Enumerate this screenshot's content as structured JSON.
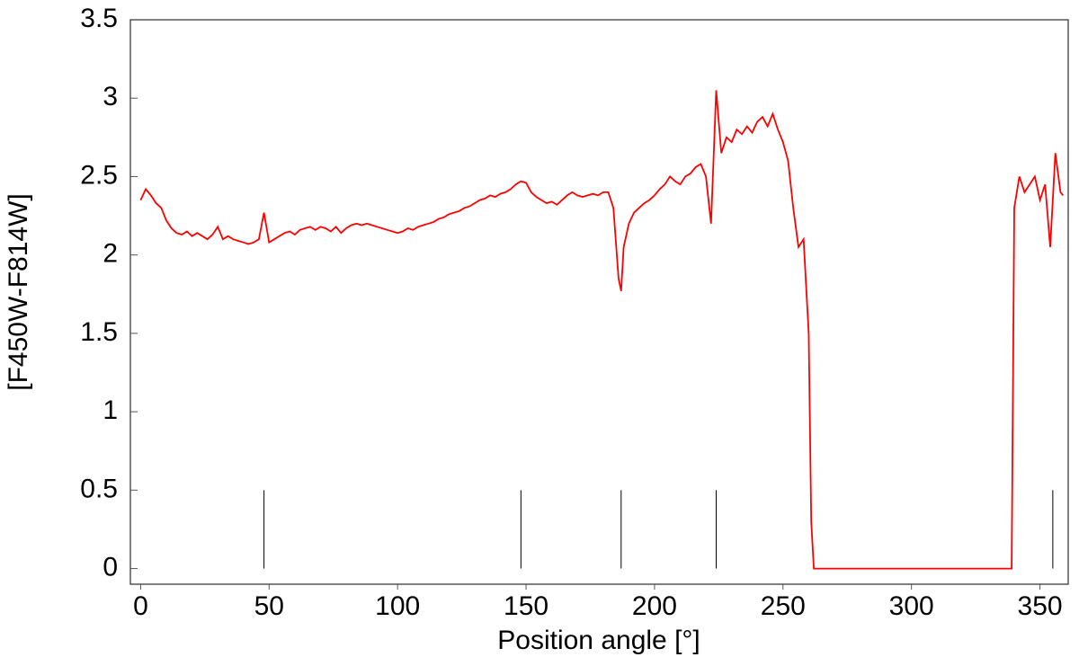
{
  "chart_data": {
    "type": "line",
    "xlabel": "Position angle [°]",
    "ylabel": "[F450W-F814W]",
    "xlim": [
      -4,
      361
    ],
    "ylim": [
      -0.1,
      3.5
    ],
    "xticks": [
      0,
      50,
      100,
      150,
      200,
      250,
      300,
      350
    ],
    "yticks": [
      0,
      0.5,
      1,
      1.5,
      2,
      2.5,
      3,
      3.5
    ],
    "vlines": {
      "x": [
        48,
        148,
        187,
        224,
        355
      ],
      "height": 0.5,
      "color": "#000000"
    },
    "series": [
      {
        "color": "#ff0000",
        "x": [
          0,
          2,
          4,
          6,
          8,
          10,
          12,
          14,
          16,
          18,
          20,
          22,
          24,
          26,
          28,
          30,
          32,
          34,
          36,
          38,
          40,
          42,
          44,
          46,
          48,
          50,
          52,
          54,
          56,
          58,
          60,
          62,
          64,
          66,
          68,
          70,
          72,
          74,
          76,
          78,
          80,
          82,
          84,
          86,
          88,
          90,
          92,
          94,
          96,
          98,
          100,
          102,
          104,
          106,
          108,
          110,
          112,
          114,
          116,
          118,
          120,
          122,
          124,
          126,
          128,
          130,
          132,
          134,
          136,
          138,
          140,
          142,
          144,
          146,
          148,
          150,
          152,
          154,
          156,
          158,
          160,
          162,
          164,
          166,
          168,
          170,
          172,
          174,
          176,
          178,
          180,
          182,
          184,
          186,
          187,
          188,
          190,
          192,
          194,
          196,
          198,
          200,
          202,
          204,
          206,
          208,
          210,
          212,
          214,
          216,
          218,
          220,
          222,
          224,
          226,
          228,
          230,
          232,
          234,
          236,
          238,
          240,
          242,
          244,
          246,
          248,
          250,
          252,
          254,
          256,
          258,
          260,
          261,
          262,
          300,
          339,
          340,
          342,
          344,
          346,
          348,
          350,
          352,
          354,
          356,
          358,
          359
        ],
        "values": [
          2.35,
          2.42,
          2.38,
          2.33,
          2.3,
          2.22,
          2.17,
          2.14,
          2.13,
          2.15,
          2.12,
          2.14,
          2.12,
          2.1,
          2.13,
          2.18,
          2.1,
          2.12,
          2.1,
          2.09,
          2.08,
          2.07,
          2.08,
          2.1,
          2.27,
          2.08,
          2.1,
          2.12,
          2.14,
          2.15,
          2.13,
          2.16,
          2.17,
          2.18,
          2.16,
          2.18,
          2.17,
          2.15,
          2.18,
          2.14,
          2.17,
          2.19,
          2.2,
          2.19,
          2.2,
          2.19,
          2.18,
          2.17,
          2.16,
          2.15,
          2.14,
          2.15,
          2.17,
          2.16,
          2.18,
          2.19,
          2.2,
          2.21,
          2.23,
          2.24,
          2.26,
          2.27,
          2.28,
          2.3,
          2.31,
          2.33,
          2.35,
          2.36,
          2.38,
          2.37,
          2.39,
          2.4,
          2.42,
          2.45,
          2.47,
          2.46,
          2.4,
          2.37,
          2.35,
          2.33,
          2.34,
          2.32,
          2.35,
          2.38,
          2.4,
          2.38,
          2.37,
          2.38,
          2.39,
          2.38,
          2.4,
          2.4,
          2.3,
          1.85,
          1.77,
          2.05,
          2.2,
          2.27,
          2.3,
          2.33,
          2.35,
          2.38,
          2.42,
          2.45,
          2.5,
          2.47,
          2.45,
          2.5,
          2.52,
          2.56,
          2.58,
          2.5,
          2.2,
          3.05,
          2.65,
          2.75,
          2.72,
          2.8,
          2.77,
          2.82,
          2.78,
          2.85,
          2.88,
          2.82,
          2.9,
          2.8,
          2.72,
          2.6,
          2.3,
          2.05,
          2.1,
          1.5,
          0.3,
          0,
          0,
          0,
          2.3,
          2.5,
          2.4,
          2.45,
          2.5,
          2.35,
          2.45,
          2.05,
          2.65,
          2.4,
          2.38
        ]
      }
    ]
  }
}
